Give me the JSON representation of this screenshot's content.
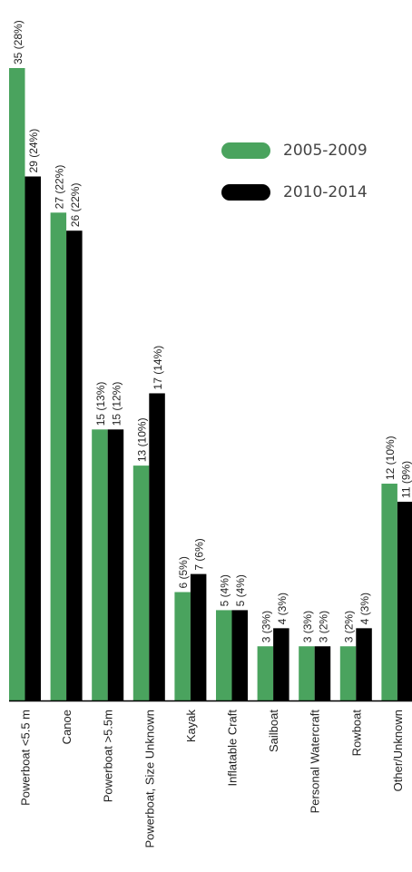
{
  "chart_data": {
    "type": "bar",
    "orientation": "vertical",
    "title": "",
    "xlabel": "",
    "ylabel": "",
    "categories": [
      "Powerboat <5.5 m",
      "Canoe",
      "Powerboat >5.5m",
      "Powerboat, Size Unknown",
      "Kayak",
      "Inflatable Craft",
      "Sailboat",
      "Personal Watercraft",
      "Rowboat",
      "Other/Unknown"
    ],
    "series": [
      {
        "name": "2005-2009",
        "color": "#4aa35e",
        "values": [
          35,
          27,
          15,
          13,
          6,
          5,
          3,
          3,
          3,
          12
        ],
        "labels": [
          "35 (28%)",
          "27 (22%)",
          "15 (13%)",
          "13 (10%)",
          "6 (5%)",
          "5 (4%)",
          "3 (3%)",
          "3 (3%)",
          "3 (2%)",
          "12 (10%)"
        ]
      },
      {
        "name": "2010-2014",
        "color": "#000000",
        "values": [
          29,
          26,
          15,
          17,
          7,
          5,
          4,
          3,
          4,
          11
        ],
        "labels": [
          "29 (24%)",
          "26 (22%)",
          "15 (12%)",
          "17 (14%)",
          "7 (6%)",
          "5 (4%)",
          "4 (3%)",
          "3 (2%)",
          "4 (3%)",
          "11 (9%)"
        ]
      }
    ],
    "ylim": [
      0,
      35
    ],
    "grid": false,
    "legend_position": "top-right"
  }
}
